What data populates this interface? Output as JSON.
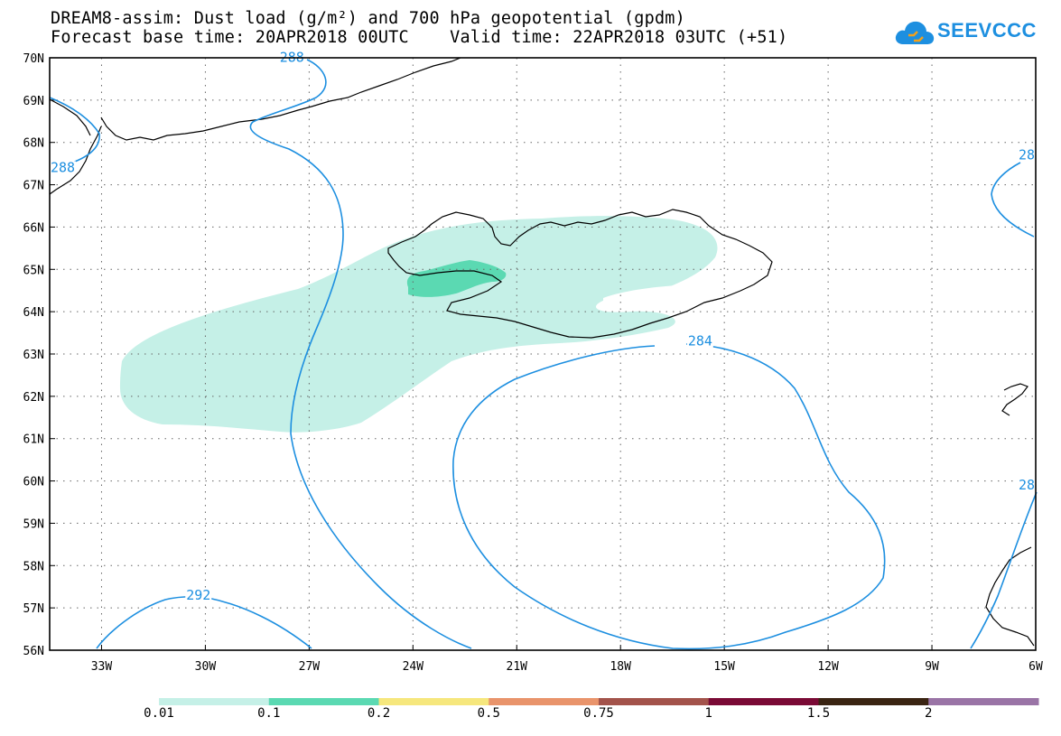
{
  "title": {
    "line1": "DREAM8-assim: Dust load (g/m²) and 700 hPa geopotential (gpdm)",
    "line2": "Forecast base time: 20APR2018 00UTC    Valid time: 22APR2018 03UTC (+51)"
  },
  "logo": {
    "text": "SEEVCCC",
    "icon": "cloud-icon",
    "color": "#1d8fe0"
  },
  "map": {
    "lon_range": [
      -34.5,
      -6
    ],
    "lat_range": [
      56,
      70
    ],
    "lon_ticks": [
      {
        "value": -33,
        "label": "33W"
      },
      {
        "value": -30,
        "label": "30W"
      },
      {
        "value": -27,
        "label": "27W"
      },
      {
        "value": -24,
        "label": "24W"
      },
      {
        "value": -21,
        "label": "21W"
      },
      {
        "value": -18,
        "label": "18W"
      },
      {
        "value": -15,
        "label": "15W"
      },
      {
        "value": -12,
        "label": "12W"
      },
      {
        "value": -9,
        "label": "9W"
      },
      {
        "value": -6,
        "label": "6W"
      }
    ],
    "lat_ticks": [
      {
        "value": 70,
        "label": "70N"
      },
      {
        "value": 69,
        "label": "69N"
      },
      {
        "value": 68,
        "label": "68N"
      },
      {
        "value": 67,
        "label": "67N"
      },
      {
        "value": 66,
        "label": "66N"
      },
      {
        "value": 65,
        "label": "65N"
      },
      {
        "value": 64,
        "label": "64N"
      },
      {
        "value": 63,
        "label": "63N"
      },
      {
        "value": 62,
        "label": "62N"
      },
      {
        "value": 61,
        "label": "61N"
      },
      {
        "value": 60,
        "label": "60N"
      },
      {
        "value": 59,
        "label": "59N"
      },
      {
        "value": 58,
        "label": "58N"
      },
      {
        "value": 57,
        "label": "57N"
      },
      {
        "value": 56,
        "label": "56N"
      }
    ],
    "grid": true,
    "contour_color": "#1d8fe0",
    "contour_labels": [
      {
        "text": "288",
        "lon": -27.5,
        "lat": 69.9
      },
      {
        "text": "288",
        "lon": -34.3,
        "lat": 67.3
      },
      {
        "text": "284",
        "lon": -15.7,
        "lat": 63.2
      },
      {
        "text": "292",
        "lon": -30.2,
        "lat": 57.2
      },
      {
        "text": "28",
        "lon": -6.1,
        "lat": 67.6
      },
      {
        "text": "28",
        "lon": -6.0,
        "lat": 59.8
      }
    ]
  },
  "colorbar": {
    "bins": [
      {
        "color": "#c5f0e7"
      },
      {
        "color": "#5bd9b2"
      },
      {
        "color": "#f6e77d"
      },
      {
        "color": "#e9946b"
      },
      {
        "color": "#a3534b"
      },
      {
        "color": "#7a0a35"
      },
      {
        "color": "#3a2412"
      },
      {
        "color": "#9a74a6"
      }
    ],
    "labels": [
      "0.01",
      "0.1",
      "0.2",
      "0.5",
      "0.75",
      "1",
      "1.5",
      "2"
    ]
  }
}
